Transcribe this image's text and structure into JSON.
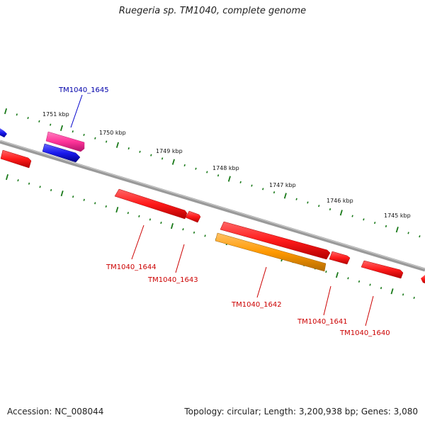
{
  "title": "Ruegeria sp. TM1040, complete genome",
  "footer": {
    "accession": "Accession: NC_008044",
    "topology": "Topology: circular; Length: 3,200,938 bp; Genes: 3,080"
  },
  "colors": {
    "backbone": "#8a8a8a",
    "tick": "#1a7a1a",
    "red_gene": "#ff1a1a",
    "pink_gene": "#ff3399",
    "blue_gene": "#1a1aee",
    "orange_gene": "#ff9900",
    "blue_label": "#0000aa",
    "red_label": "#cc0000"
  },
  "scale_ticks": [
    "1751 kbp",
    "1750 kbp",
    "1749 kbp",
    "1748 kbp",
    "1747 kbp",
    "1746 kbp",
    "1745 kbp"
  ],
  "genes": [
    {
      "label": "TM1040_1645",
      "color": "blue_label"
    },
    {
      "label": "TM1040_1644",
      "color": "red_label"
    },
    {
      "label": "TM1040_1643",
      "color": "red_label"
    },
    {
      "label": "TM1040_1642",
      "color": "red_label"
    },
    {
      "label": "TM1040_1641",
      "color": "red_label"
    },
    {
      "label": "TM1040_1640",
      "color": "red_label"
    }
  ]
}
